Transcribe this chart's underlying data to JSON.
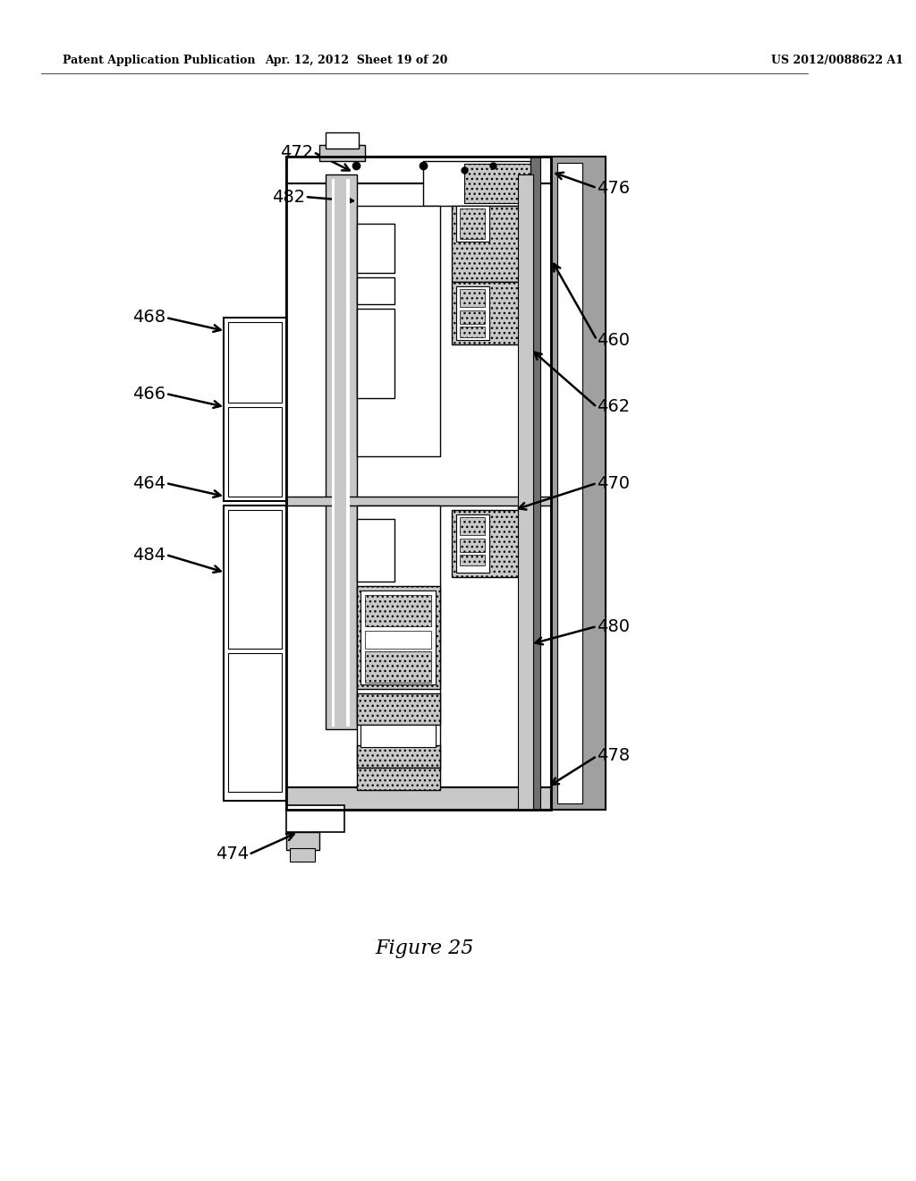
{
  "background_color": "#ffffff",
  "header_left": "Patent Application Publication",
  "header_center": "Apr. 12, 2012  Sheet 19 of 20",
  "header_right": "US 2012/0088622 A1",
  "figure_caption": "Figure 25",
  "gray_light": "#c8c8c8",
  "gray_med": "#a0a0a0",
  "gray_dark": "#707070",
  "black": "#000000",
  "white": "#ffffff",
  "label_fontsize": 14,
  "header_fontsize": 9,
  "caption_fontsize": 16
}
